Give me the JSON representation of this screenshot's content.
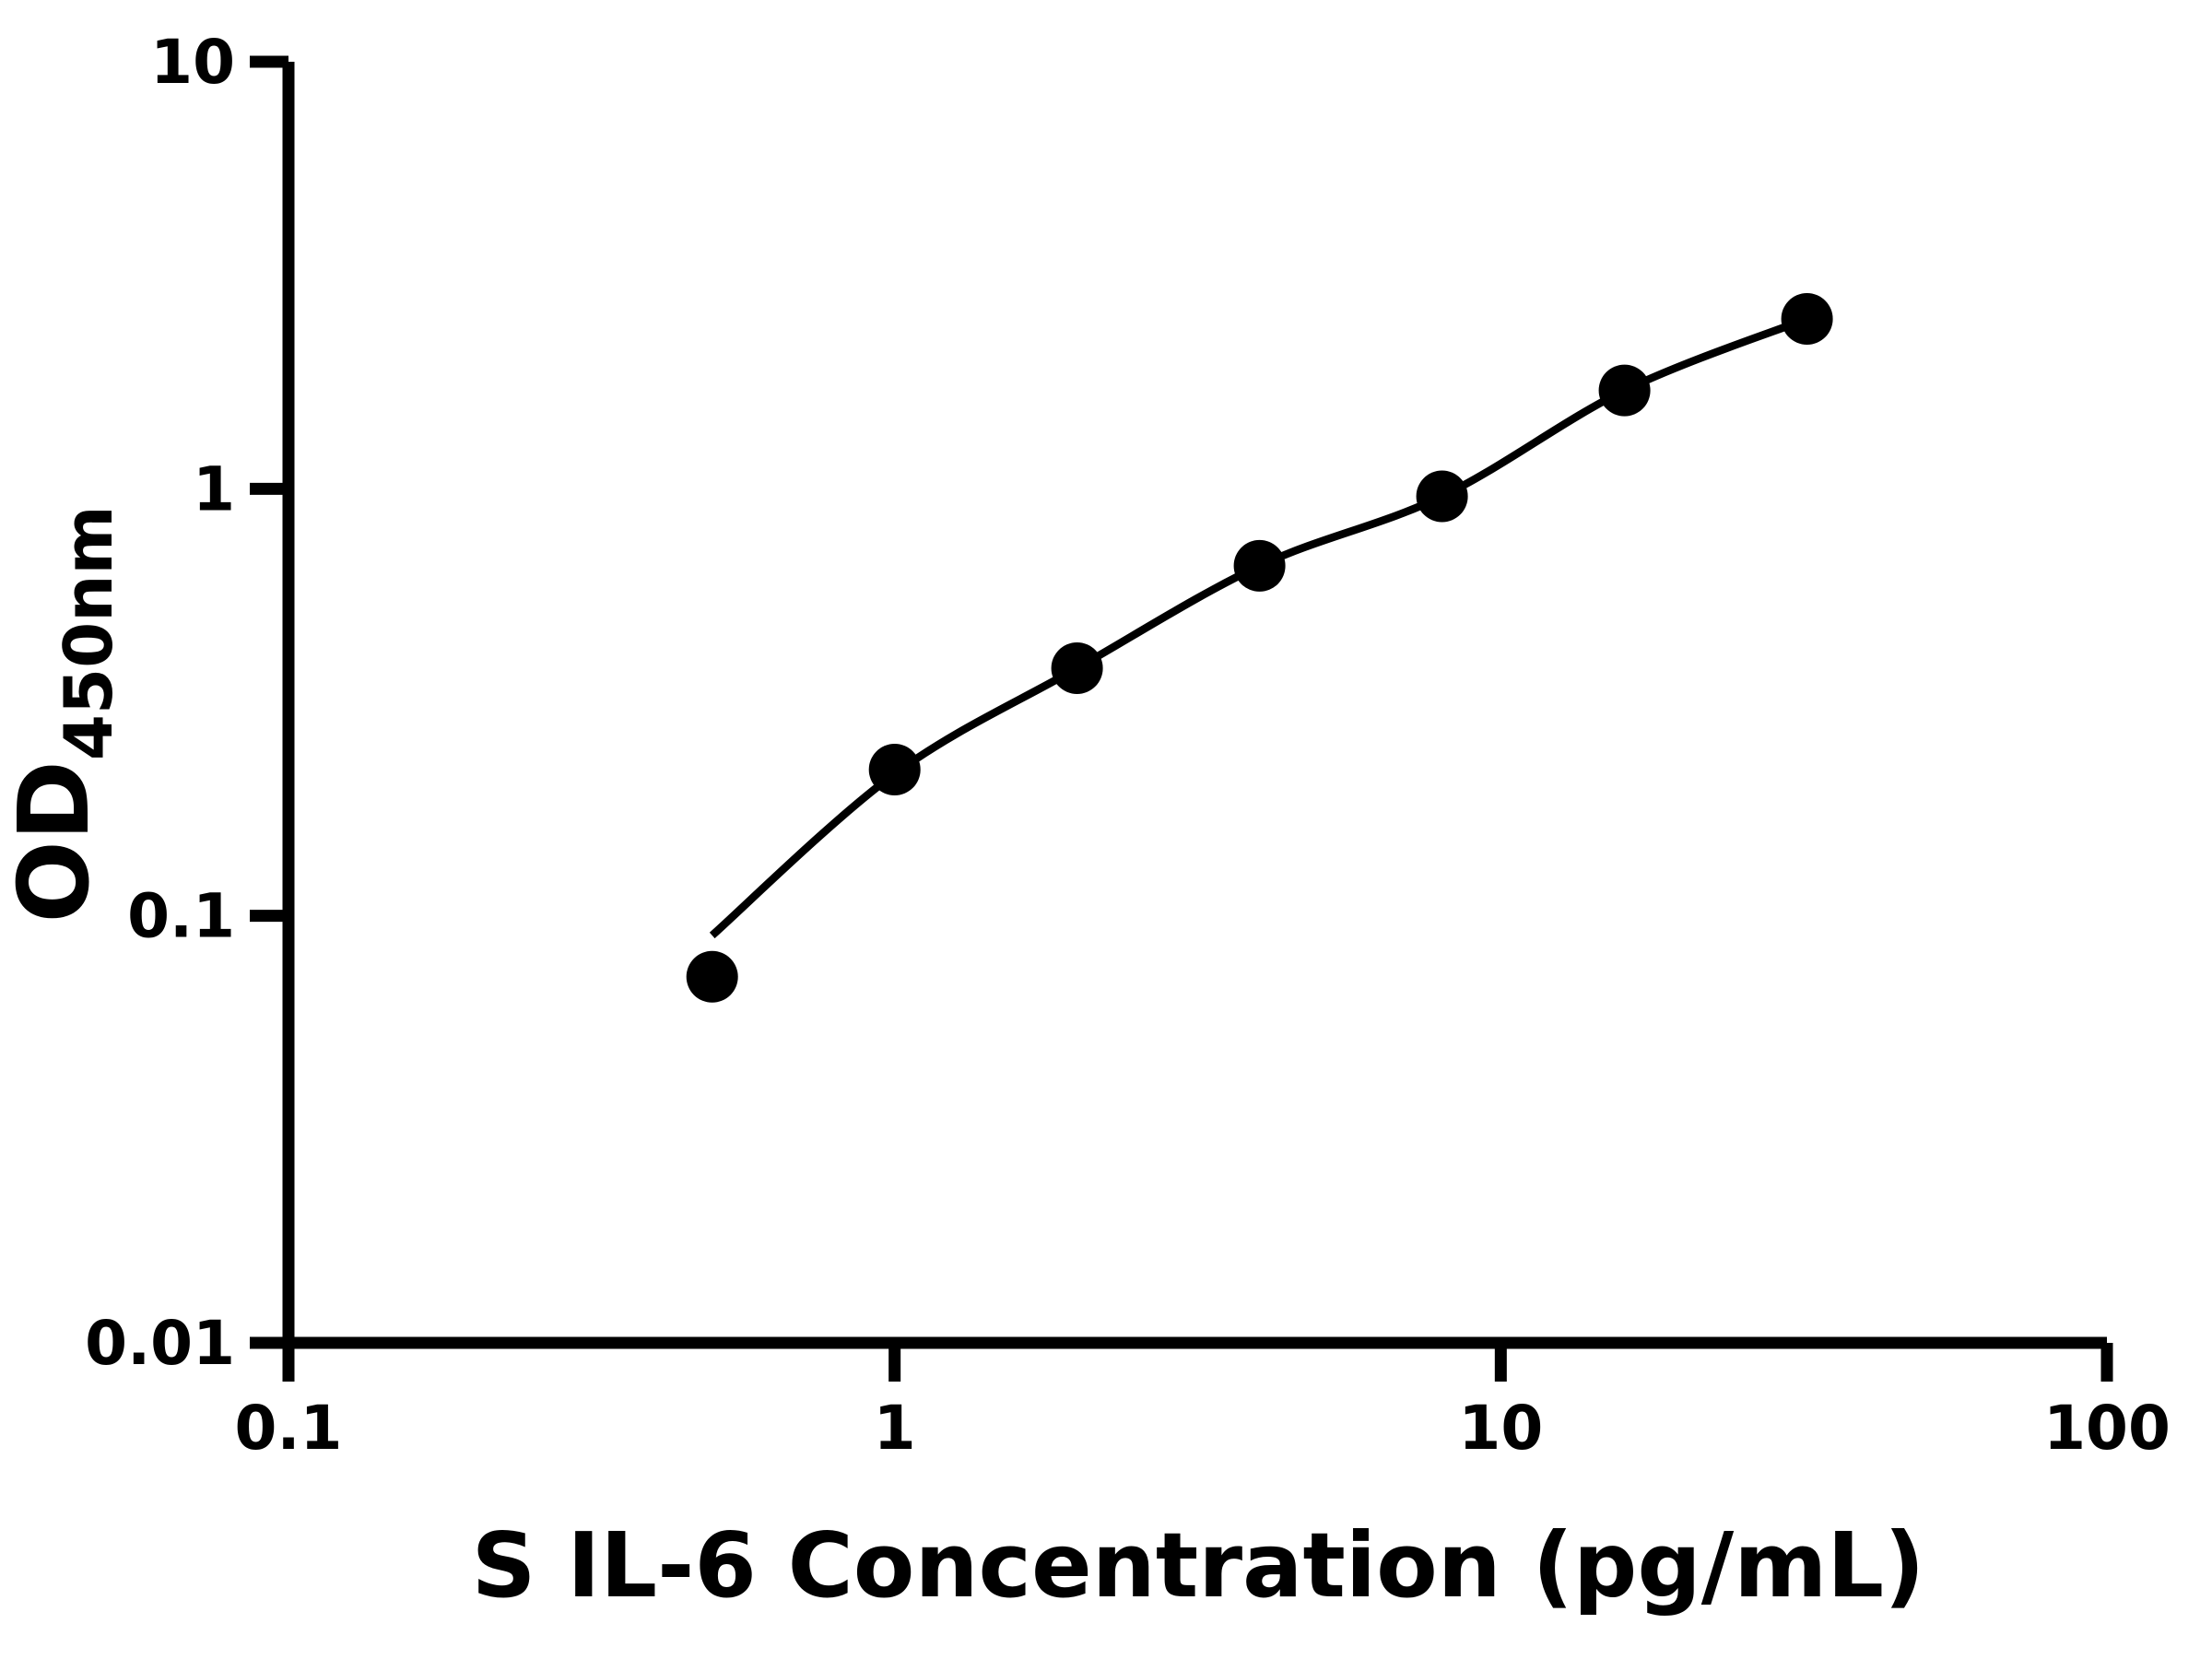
{
  "page": {
    "background_color": "#ffffff",
    "foreground_color": "#000000"
  },
  "chart_data": {
    "type": "scatter",
    "subtype": "elisa-standard-curve-with-fit",
    "title": "",
    "xlabel": "S IL-6 Concentration (pg/mL)",
    "ylabel_main": "OD",
    "ylabel_sub": "450nm",
    "x_scale": "log",
    "y_scale": "log",
    "xlim": [
      0.1,
      100
    ],
    "ylim": [
      0.01,
      10
    ],
    "x_ticks": [
      {
        "value": 0.1,
        "label": "0.1"
      },
      {
        "value": 1,
        "label": "1"
      },
      {
        "value": 10,
        "label": "10"
      },
      {
        "value": 100,
        "label": "100"
      }
    ],
    "y_ticks": [
      {
        "value": 0.01,
        "label": "0.01"
      },
      {
        "value": 0.1,
        "label": "0.1"
      },
      {
        "value": 1,
        "label": "1"
      },
      {
        "value": 10,
        "label": "10"
      }
    ],
    "grid": false,
    "legend": false,
    "points": [
      {
        "x": 0.5,
        "y": 0.072
      },
      {
        "x": 1,
        "y": 0.22
      },
      {
        "x": 2,
        "y": 0.38
      },
      {
        "x": 4,
        "y": 0.66
      },
      {
        "x": 8,
        "y": 0.96
      },
      {
        "x": 16,
        "y": 1.7
      },
      {
        "x": 32,
        "y": 2.5
      }
    ],
    "fit_curve_points": [
      {
        "x": 0.5,
        "y": 0.09
      },
      {
        "x": 1,
        "y": 0.215
      },
      {
        "x": 2,
        "y": 0.38
      },
      {
        "x": 4,
        "y": 0.66
      },
      {
        "x": 8,
        "y": 0.96
      },
      {
        "x": 16,
        "y": 1.7
      },
      {
        "x": 32,
        "y": 2.5
      }
    ],
    "colors": {
      "marker": "#000000",
      "line": "#000000",
      "axis": "#000000",
      "text": "#000000",
      "background": "#ffffff"
    }
  }
}
